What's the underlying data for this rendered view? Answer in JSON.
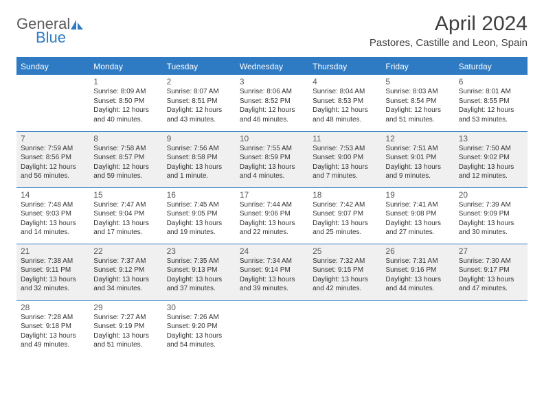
{
  "logo": {
    "part1": "General",
    "part2": "Blue"
  },
  "title": "April 2024",
  "location": "Pastores, Castille and Leon, Spain",
  "weekdays": [
    "Sunday",
    "Monday",
    "Tuesday",
    "Wednesday",
    "Thursday",
    "Friday",
    "Saturday"
  ],
  "colors": {
    "header_bg": "#2e7bc4",
    "header_text": "#ffffff",
    "shaded_bg": "#f0f0f0",
    "border": "#2e7bc4",
    "text": "#333333"
  },
  "font": {
    "family": "Arial",
    "th_size": 12,
    "daynum_size": 12,
    "entry_size": 10,
    "title_size": 30,
    "location_size": 15
  },
  "weeks": [
    {
      "shaded": false,
      "days": [
        null,
        {
          "n": "1",
          "sr": "Sunrise: 8:09 AM",
          "ss": "Sunset: 8:50 PM",
          "dl1": "Daylight: 12 hours",
          "dl2": "and 40 minutes."
        },
        {
          "n": "2",
          "sr": "Sunrise: 8:07 AM",
          "ss": "Sunset: 8:51 PM",
          "dl1": "Daylight: 12 hours",
          "dl2": "and 43 minutes."
        },
        {
          "n": "3",
          "sr": "Sunrise: 8:06 AM",
          "ss": "Sunset: 8:52 PM",
          "dl1": "Daylight: 12 hours",
          "dl2": "and 46 minutes."
        },
        {
          "n": "4",
          "sr": "Sunrise: 8:04 AM",
          "ss": "Sunset: 8:53 PM",
          "dl1": "Daylight: 12 hours",
          "dl2": "and 48 minutes."
        },
        {
          "n": "5",
          "sr": "Sunrise: 8:03 AM",
          "ss": "Sunset: 8:54 PM",
          "dl1": "Daylight: 12 hours",
          "dl2": "and 51 minutes."
        },
        {
          "n": "6",
          "sr": "Sunrise: 8:01 AM",
          "ss": "Sunset: 8:55 PM",
          "dl1": "Daylight: 12 hours",
          "dl2": "and 53 minutes."
        }
      ]
    },
    {
      "shaded": true,
      "days": [
        {
          "n": "7",
          "sr": "Sunrise: 7:59 AM",
          "ss": "Sunset: 8:56 PM",
          "dl1": "Daylight: 12 hours",
          "dl2": "and 56 minutes."
        },
        {
          "n": "8",
          "sr": "Sunrise: 7:58 AM",
          "ss": "Sunset: 8:57 PM",
          "dl1": "Daylight: 12 hours",
          "dl2": "and 59 minutes."
        },
        {
          "n": "9",
          "sr": "Sunrise: 7:56 AM",
          "ss": "Sunset: 8:58 PM",
          "dl1": "Daylight: 13 hours",
          "dl2": "and 1 minute."
        },
        {
          "n": "10",
          "sr": "Sunrise: 7:55 AM",
          "ss": "Sunset: 8:59 PM",
          "dl1": "Daylight: 13 hours",
          "dl2": "and 4 minutes."
        },
        {
          "n": "11",
          "sr": "Sunrise: 7:53 AM",
          "ss": "Sunset: 9:00 PM",
          "dl1": "Daylight: 13 hours",
          "dl2": "and 7 minutes."
        },
        {
          "n": "12",
          "sr": "Sunrise: 7:51 AM",
          "ss": "Sunset: 9:01 PM",
          "dl1": "Daylight: 13 hours",
          "dl2": "and 9 minutes."
        },
        {
          "n": "13",
          "sr": "Sunrise: 7:50 AM",
          "ss": "Sunset: 9:02 PM",
          "dl1": "Daylight: 13 hours",
          "dl2": "and 12 minutes."
        }
      ]
    },
    {
      "shaded": false,
      "days": [
        {
          "n": "14",
          "sr": "Sunrise: 7:48 AM",
          "ss": "Sunset: 9:03 PM",
          "dl1": "Daylight: 13 hours",
          "dl2": "and 14 minutes."
        },
        {
          "n": "15",
          "sr": "Sunrise: 7:47 AM",
          "ss": "Sunset: 9:04 PM",
          "dl1": "Daylight: 13 hours",
          "dl2": "and 17 minutes."
        },
        {
          "n": "16",
          "sr": "Sunrise: 7:45 AM",
          "ss": "Sunset: 9:05 PM",
          "dl1": "Daylight: 13 hours",
          "dl2": "and 19 minutes."
        },
        {
          "n": "17",
          "sr": "Sunrise: 7:44 AM",
          "ss": "Sunset: 9:06 PM",
          "dl1": "Daylight: 13 hours",
          "dl2": "and 22 minutes."
        },
        {
          "n": "18",
          "sr": "Sunrise: 7:42 AM",
          "ss": "Sunset: 9:07 PM",
          "dl1": "Daylight: 13 hours",
          "dl2": "and 25 minutes."
        },
        {
          "n": "19",
          "sr": "Sunrise: 7:41 AM",
          "ss": "Sunset: 9:08 PM",
          "dl1": "Daylight: 13 hours",
          "dl2": "and 27 minutes."
        },
        {
          "n": "20",
          "sr": "Sunrise: 7:39 AM",
          "ss": "Sunset: 9:09 PM",
          "dl1": "Daylight: 13 hours",
          "dl2": "and 30 minutes."
        }
      ]
    },
    {
      "shaded": true,
      "days": [
        {
          "n": "21",
          "sr": "Sunrise: 7:38 AM",
          "ss": "Sunset: 9:11 PM",
          "dl1": "Daylight: 13 hours",
          "dl2": "and 32 minutes."
        },
        {
          "n": "22",
          "sr": "Sunrise: 7:37 AM",
          "ss": "Sunset: 9:12 PM",
          "dl1": "Daylight: 13 hours",
          "dl2": "and 34 minutes."
        },
        {
          "n": "23",
          "sr": "Sunrise: 7:35 AM",
          "ss": "Sunset: 9:13 PM",
          "dl1": "Daylight: 13 hours",
          "dl2": "and 37 minutes."
        },
        {
          "n": "24",
          "sr": "Sunrise: 7:34 AM",
          "ss": "Sunset: 9:14 PM",
          "dl1": "Daylight: 13 hours",
          "dl2": "and 39 minutes."
        },
        {
          "n": "25",
          "sr": "Sunrise: 7:32 AM",
          "ss": "Sunset: 9:15 PM",
          "dl1": "Daylight: 13 hours",
          "dl2": "and 42 minutes."
        },
        {
          "n": "26",
          "sr": "Sunrise: 7:31 AM",
          "ss": "Sunset: 9:16 PM",
          "dl1": "Daylight: 13 hours",
          "dl2": "and 44 minutes."
        },
        {
          "n": "27",
          "sr": "Sunrise: 7:30 AM",
          "ss": "Sunset: 9:17 PM",
          "dl1": "Daylight: 13 hours",
          "dl2": "and 47 minutes."
        }
      ]
    },
    {
      "shaded": false,
      "days": [
        {
          "n": "28",
          "sr": "Sunrise: 7:28 AM",
          "ss": "Sunset: 9:18 PM",
          "dl1": "Daylight: 13 hours",
          "dl2": "and 49 minutes."
        },
        {
          "n": "29",
          "sr": "Sunrise: 7:27 AM",
          "ss": "Sunset: 9:19 PM",
          "dl1": "Daylight: 13 hours",
          "dl2": "and 51 minutes."
        },
        {
          "n": "30",
          "sr": "Sunrise: 7:26 AM",
          "ss": "Sunset: 9:20 PM",
          "dl1": "Daylight: 13 hours",
          "dl2": "and 54 minutes."
        },
        null,
        null,
        null,
        null
      ]
    }
  ]
}
